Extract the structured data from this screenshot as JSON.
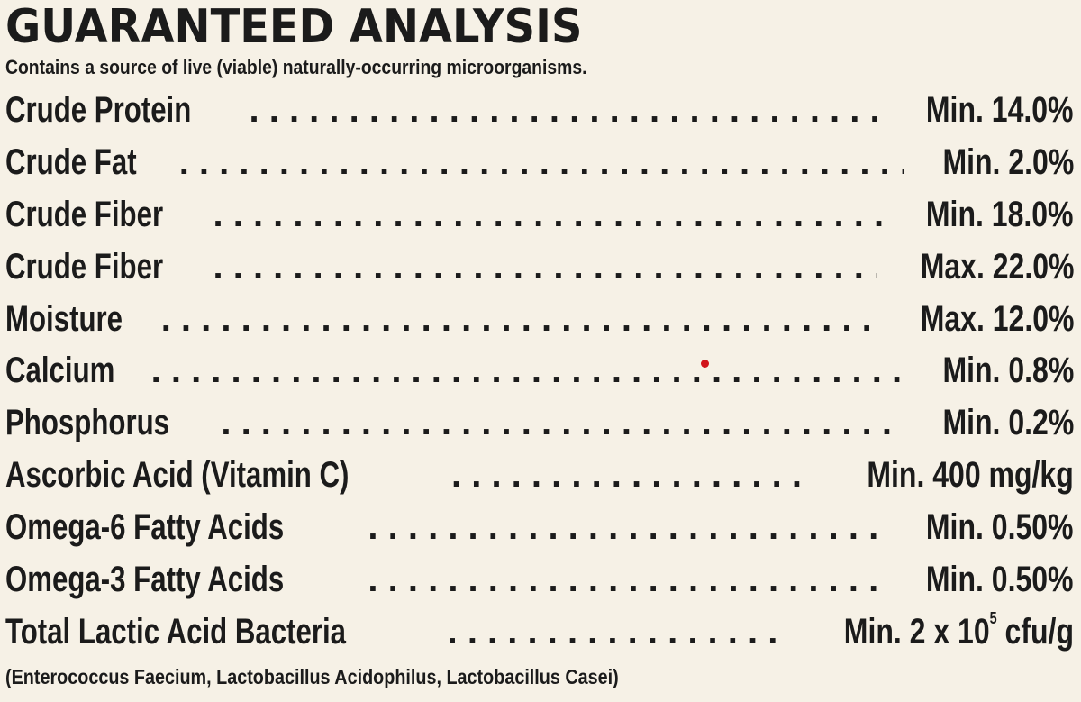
{
  "title": "GUARANTEED ANALYSIS",
  "subtitle": "Contains a source of live (viable) naturally-occurring microorganisms.",
  "rows": [
    {
      "name": "Crude Protein",
      "value": "Min. 14.0%"
    },
    {
      "name": "Crude Fat",
      "value": "Min. 2.0%"
    },
    {
      "name": "Crude Fiber",
      "value": "Min. 18.0%"
    },
    {
      "name": "Crude Fiber",
      "value": "Max. 22.0%"
    },
    {
      "name": "Moisture",
      "value": "Max. 12.0%"
    },
    {
      "name": "Calcium",
      "value": "Min. 0.8%"
    },
    {
      "name": "Phosphorus",
      "value": "Min. 0.2%"
    },
    {
      "name": "Ascorbic Acid (Vitamin C)",
      "value": "Min. 400 mg/kg"
    },
    {
      "name": "Omega-6 Fatty Acids",
      "value": "Min. 0.50%"
    },
    {
      "name": "Omega-3 Fatty Acids",
      "value": "Min. 0.50%"
    },
    {
      "name": "Total Lactic Acid Bacteria",
      "value": "Min. 2 x 10",
      "value_exponent": "5",
      "value_unit": "cfu/g"
    }
  ],
  "footnote": "(Enterococcus Faecium, Lactobacillus Acidophilus, Lactobacillus Casei)",
  "colors": {
    "background": "#f6f1e6",
    "text": "#1b1b1b",
    "marker": "#d1141b"
  }
}
